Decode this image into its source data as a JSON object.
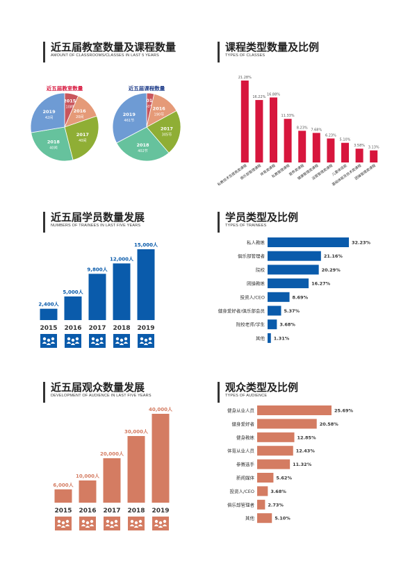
{
  "sections": {
    "classrooms": {
      "title": "近五届教室数量及课程数量",
      "subtitle": "AMOUNT OF CLASSROOMS/CLASSES IN LAST 5 YEARS"
    },
    "course_types": {
      "title": "课程类型数量及比例",
      "subtitle": "TYPES OF CLASSES"
    },
    "trainees": {
      "title": "近五届学员数量发展",
      "subtitle": "NUMBERS OF TRAINEES IN LAST FIVE YEARS"
    },
    "trainee_types": {
      "title": "学员类型及比例",
      "subtitle": "TYPES OF TRAINEES"
    },
    "audience": {
      "title": "近五届观众数量发展",
      "subtitle": "DEVELOPMENT OF AUDIENCE IN LAST FIVE YEARS"
    },
    "audience_types": {
      "title": "观众类型及比例",
      "subtitle": "TYPES OF AUDIENCE"
    }
  },
  "colors": {
    "pie": [
      "#c9555c",
      "#e59a78",
      "#8fae35",
      "#66c29d",
      "#6e9bd4"
    ],
    "course_bar": "#d7163d",
    "trainee_bar": "#0a5bab",
    "audience_bar": "#d47c62",
    "icon_box_blue": "#0a5bab",
    "icon_box_orange": "#d47c62"
  },
  "chart_data": [
    {
      "id": "classroom-pie",
      "type": "pie",
      "title": "近五届教室数量",
      "title_color": "#d7163d",
      "slices": [
        {
          "year": "2015",
          "label": "10间",
          "value": 10
        },
        {
          "year": "2016",
          "label": "20间",
          "value": 20
        },
        {
          "year": "2017",
          "label": "40间",
          "value": 40
        },
        {
          "year": "2018",
          "label": "40间",
          "value": 40
        },
        {
          "year": "2019",
          "label": "42间",
          "value": 42
        }
      ]
    },
    {
      "id": "course-pie",
      "type": "pie",
      "title": "近五届课程数量",
      "title_color": "#1f3d8a",
      "slices": [
        {
          "year": "2015",
          "label": "50节",
          "value": 50
        },
        {
          "year": "2016",
          "label": "190节",
          "value": 190
        },
        {
          "year": "2017",
          "label": "305节",
          "value": 305
        },
        {
          "year": "2018",
          "label": "402节",
          "value": 402
        },
        {
          "year": "2019",
          "label": "461节",
          "value": 461
        }
      ]
    },
    {
      "id": "course-types",
      "type": "bar",
      "categories": [
        "私教技术及提高类课程",
        "俱乐部管理课程",
        "体育类课程",
        "私教管理课程",
        "营养类课程",
        "健康管理类课程",
        "运营管理类课程",
        "儿童体适能",
        "基础体能及技术类课程",
        "团操管理类课程"
      ],
      "values": [
        21.28,
        16.22,
        16.88,
        11.33,
        8.23,
        7.68,
        6.23,
        5.1,
        3.58,
        3.13
      ],
      "labels": [
        "21.28%",
        "16.22%",
        "16.88%",
        "11.33%",
        "8.23%",
        "7.68%",
        "6.23%",
        "5.10%",
        "3.58%",
        "3.13%"
      ],
      "ylim": [
        0,
        22
      ]
    },
    {
      "id": "trainee-count",
      "type": "bar",
      "categories": [
        "2015",
        "2016",
        "2017",
        "2018",
        "2019"
      ],
      "values": [
        2400,
        5000,
        9800,
        12000,
        15000
      ],
      "labels": [
        "2,400人",
        "5,000人",
        "9,800人",
        "12,000人",
        "15,000人"
      ],
      "ylim": [
        0,
        15000
      ]
    },
    {
      "id": "trainee-types",
      "type": "bar",
      "orientation": "horizontal",
      "categories": [
        "私人教练",
        "俱乐部管理者",
        "院校",
        "团操教练",
        "投资人/CEO",
        "健身爱好者/俱乐部会员",
        "院校老师/学生",
        "其他"
      ],
      "values": [
        32.23,
        21.16,
        20.29,
        16.27,
        8.69,
        5.37,
        3.68,
        1.31
      ],
      "labels": [
        "32.23%",
        "21.16%",
        "20.29%",
        "16.27%",
        "8.69%",
        "5.37%",
        "3.68%",
        "1.31%"
      ],
      "xlim": [
        0,
        32.23
      ]
    },
    {
      "id": "audience-count",
      "type": "bar",
      "categories": [
        "2015",
        "2016",
        "2017",
        "2018",
        "2019"
      ],
      "values": [
        6000,
        10000,
        20000,
        30000,
        40000
      ],
      "labels": [
        "6,000人",
        "10,000人",
        "20,000人",
        "30,000人",
        "40,000人"
      ],
      "ylim": [
        0,
        40000
      ]
    },
    {
      "id": "audience-types",
      "type": "bar",
      "orientation": "horizontal",
      "categories": [
        "健身从业人员",
        "健身爱好者",
        "健身教练",
        "体育从业人员",
        "参赛选手",
        "新闻媒体",
        "投资人/CEO",
        "俱乐部管理者",
        "其他"
      ],
      "values": [
        25.69,
        20.58,
        12.85,
        12.43,
        11.32,
        5.62,
        3.68,
        2.73,
        5.1
      ],
      "labels": [
        "25.69%",
        "20.58%",
        "12.85%",
        "12.43%",
        "11.32%",
        "5.62%",
        "3.68%",
        "2.73%",
        "5.10%"
      ],
      "xlim": [
        0,
        25.69
      ]
    }
  ]
}
